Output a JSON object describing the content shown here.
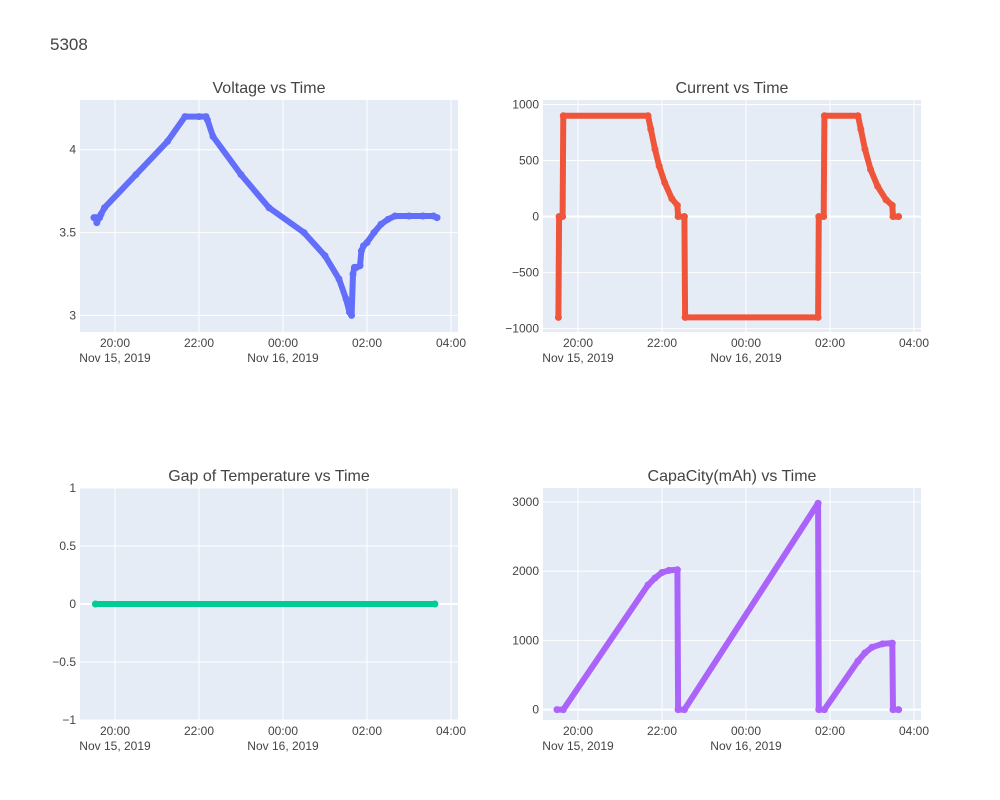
{
  "figure_title": "5308",
  "chart_data": [
    {
      "id": "voltage",
      "type": "line",
      "title": "Voltage vs Time",
      "xlabel": "",
      "ylabel": "",
      "x_range": [
        "2019-11-15T19:10:00",
        "2019-11-16T04:10:00"
      ],
      "ylim": [
        2.9,
        4.3
      ],
      "y_ticks": [
        3,
        3.5,
        4
      ],
      "y_tick_labels": [
        "3",
        "3.5",
        "4"
      ],
      "color": "#636efa",
      "series": [
        {
          "x": [
            "2019-11-15T19:30:00",
            "2019-11-15T19:33:00",
            "2019-11-15T19:34:00",
            "2019-11-15T19:37:00",
            "2019-11-15T19:38:00",
            "2019-11-15T19:40:00",
            "2019-11-15T19:45:00",
            "2019-11-15T20:30:00",
            "2019-11-15T21:15:00",
            "2019-11-15T21:40:00",
            "2019-11-15T22:00:00",
            "2019-11-15T22:10:00",
            "2019-11-15T22:12:00",
            "2019-11-15T22:20:00",
            "2019-11-15T23:00:00",
            "2019-11-15T23:40:00",
            "2019-11-16T00:30:00",
            "2019-11-16T01:00:00",
            "2019-11-16T01:20:00",
            "2019-11-16T01:30:00",
            "2019-11-16T01:35:00",
            "2019-11-16T01:38:00",
            "2019-11-16T01:40:00",
            "2019-11-16T01:42:00",
            "2019-11-16T01:45:00",
            "2019-11-16T01:50:00",
            "2019-11-16T01:52:00",
            "2019-11-16T01:55:00",
            "2019-11-16T02:00:00",
            "2019-11-16T02:10:00",
            "2019-11-16T02:20:00",
            "2019-11-16T02:30:00",
            "2019-11-16T02:40:00",
            "2019-11-16T03:00:00",
            "2019-11-16T03:20:00",
            "2019-11-16T03:35:00",
            "2019-11-16T03:40:00"
          ],
          "y": [
            3.59,
            3.59,
            3.56,
            3.59,
            3.59,
            3.61,
            3.65,
            3.85,
            4.05,
            4.2,
            4.2,
            4.2,
            4.18,
            4.08,
            3.85,
            3.65,
            3.5,
            3.36,
            3.22,
            3.1,
            3.02,
            3.0,
            3.25,
            3.29,
            3.29,
            3.3,
            3.39,
            3.42,
            3.44,
            3.5,
            3.55,
            3.58,
            3.6,
            3.6,
            3.6,
            3.6,
            3.59
          ]
        }
      ]
    },
    {
      "id": "current",
      "type": "line",
      "title": "Current vs Time",
      "xlabel": "",
      "ylabel": "",
      "x_range": [
        "2019-11-15T19:10:00",
        "2019-11-16T04:10:00"
      ],
      "ylim": [
        -1030,
        1040
      ],
      "y_ticks": [
        -1000,
        -500,
        0,
        500,
        1000
      ],
      "y_tick_labels": [
        "−1000",
        "−500",
        "0",
        "500",
        "1000"
      ],
      "color": "#ef553b",
      "series": [
        {
          "x": [
            "2019-11-15T19:32:00",
            "2019-11-15T19:33:00",
            "2019-11-15T19:38:00",
            "2019-11-15T19:39:00",
            "2019-11-15T21:40:00",
            "2019-11-15T21:44:00",
            "2019-11-15T21:50:00",
            "2019-11-15T21:56:00",
            "2019-11-15T22:04:00",
            "2019-11-15T22:14:00",
            "2019-11-15T22:22:00",
            "2019-11-15T22:23:00",
            "2019-11-15T22:32:00",
            "2019-11-15T22:33:00",
            "2019-11-16T01:43:00",
            "2019-11-16T01:44:00",
            "2019-11-16T01:51:00",
            "2019-11-16T01:52:00",
            "2019-11-16T02:40:00",
            "2019-11-16T02:44:00",
            "2019-11-16T02:50:00",
            "2019-11-16T02:58:00",
            "2019-11-16T03:08:00",
            "2019-11-16T03:20:00",
            "2019-11-16T03:29:00",
            "2019-11-16T03:30:00",
            "2019-11-16T03:38:00"
          ],
          "y": [
            -900,
            0,
            0,
            900,
            900,
            780,
            600,
            450,
            300,
            160,
            100,
            0,
            0,
            -900,
            -900,
            0,
            0,
            900,
            900,
            780,
            600,
            420,
            270,
            150,
            100,
            0,
            0
          ]
        }
      ]
    },
    {
      "id": "temperature_gap",
      "type": "line",
      "title": "Gap of Temperature vs Time",
      "xlabel": "",
      "ylabel": "",
      "x_range": [
        "2019-11-15T19:10:00",
        "2019-11-16T04:10:00"
      ],
      "ylim": [
        -1,
        1
      ],
      "y_ticks": [
        -1,
        -0.5,
        0,
        0.5,
        1
      ],
      "y_tick_labels": [
        "−1",
        "−0.5",
        "0",
        "0.5",
        "1"
      ],
      "color": "#00cc96",
      "series": [
        {
          "x": [
            "2019-11-15T19:32:00",
            "2019-11-16T03:37:00"
          ],
          "y": [
            0,
            0
          ]
        }
      ]
    },
    {
      "id": "capacity",
      "type": "line",
      "title": "CapaCity(mAh) vs Time",
      "xlabel": "",
      "ylabel": "",
      "x_range": [
        "2019-11-15T19:10:00",
        "2019-11-16T04:10:00"
      ],
      "ylim": [
        -150,
        3200
      ],
      "y_ticks": [
        0,
        1000,
        2000,
        3000
      ],
      "y_tick_labels": [
        "0",
        "1000",
        "2000",
        "3000"
      ],
      "color": "#ab63fa",
      "series": [
        {
          "x": [
            "2019-11-15T19:30:00",
            "2019-11-15T19:39:00",
            "2019-11-15T21:40:00",
            "2019-11-15T21:50:00",
            "2019-11-15T22:00:00",
            "2019-11-15T22:10:00",
            "2019-11-15T22:22:00",
            "2019-11-15T22:23:00",
            "2019-11-15T22:32:00",
            "2019-11-16T01:43:00",
            "2019-11-16T01:44:00",
            "2019-11-16T01:52:00",
            "2019-11-16T02:40:00",
            "2019-11-16T02:50:00",
            "2019-11-16T03:00:00",
            "2019-11-16T03:15:00",
            "2019-11-16T03:29:00",
            "2019-11-16T03:30:00",
            "2019-11-16T03:38:00"
          ],
          "y": [
            0,
            0,
            1800,
            1900,
            1980,
            2010,
            2020,
            0,
            0,
            2980,
            0,
            0,
            700,
            820,
            900,
            950,
            960,
            0,
            0
          ]
        }
      ]
    }
  ],
  "x_axis": {
    "ticks": [
      "2019-11-15T20:00:00",
      "2019-11-15T22:00:00",
      "2019-11-16T00:00:00",
      "2019-11-16T02:00:00",
      "2019-11-16T04:00:00"
    ],
    "tick_labels": [
      "20:00",
      "22:00",
      "00:00",
      "02:00",
      "04:00"
    ],
    "date_labels": [
      "Nov 15, 2019",
      "",
      "Nov 16, 2019",
      "",
      ""
    ]
  }
}
